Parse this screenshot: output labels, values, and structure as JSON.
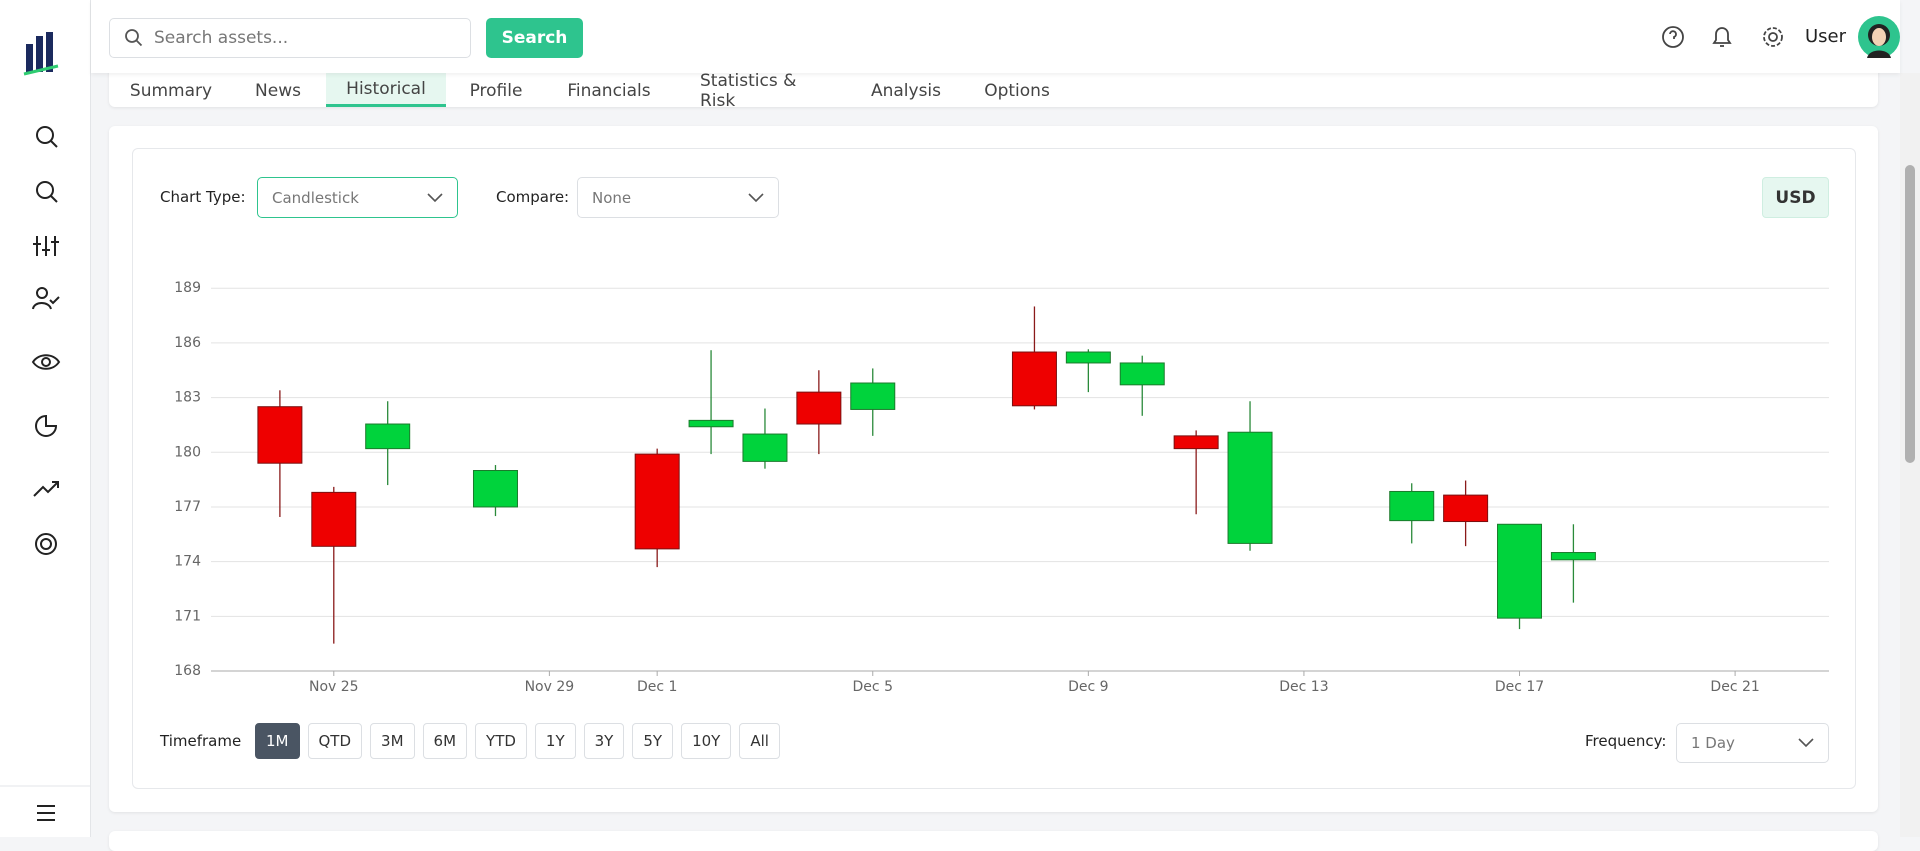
{
  "search": {
    "placeholder": "Search assets...",
    "button": "Search"
  },
  "user": {
    "name": "User"
  },
  "tabs": [
    "Summary",
    "News",
    "Historical",
    "Profile",
    "Financials",
    "Statistics & Risk",
    "Analysis",
    "Options"
  ],
  "controls": {
    "chart_type_label": "Chart Type:",
    "chart_type": "Candlestick",
    "compare_label": "Compare:",
    "compare": "None",
    "currency": "USD",
    "timeframe_label": "Timeframe",
    "timeframes": [
      "1M",
      "QTD",
      "3M",
      "6M",
      "YTD",
      "1Y",
      "3Y",
      "5Y",
      "10Y",
      "All"
    ],
    "frequency_label": "Frequency:",
    "frequency": "1 Day"
  },
  "chart_data": {
    "type": "candlestick",
    "x": [
      "Nov 24",
      "Nov 25",
      "Nov 26",
      "Nov 28",
      "Dec 1",
      "Dec 2",
      "Dec 3",
      "Dec 4",
      "Dec 5",
      "Dec 8",
      "Dec 9",
      "Dec 10",
      "Dec 11",
      "Dec 12",
      "Dec 15",
      "Dec 16",
      "Dec 17",
      "Dec 18"
    ],
    "open": [
      182.5,
      177.8,
      180.2,
      177.0,
      179.9,
      181.4,
      179.5,
      183.3,
      182.35,
      185.5,
      184.9,
      183.7,
      180.9,
      175.0,
      176.25,
      177.65,
      170.9,
      174.1
    ],
    "high": [
      183.4,
      178.1,
      182.8,
      179.3,
      180.2,
      185.6,
      182.4,
      184.5,
      184.6,
      188.0,
      185.65,
      185.3,
      181.2,
      182.8,
      178.3,
      178.45,
      176.05,
      176.05
    ],
    "low": [
      176.45,
      169.5,
      178.2,
      176.5,
      173.7,
      179.9,
      179.1,
      179.9,
      180.9,
      182.35,
      183.3,
      182.0,
      176.6,
      174.6,
      175.0,
      174.85,
      170.3,
      171.75
    ],
    "close": [
      179.4,
      174.84,
      181.55,
      179.0,
      174.7,
      181.75,
      181.0,
      181.55,
      183.8,
      182.55,
      185.5,
      184.9,
      180.2,
      181.1,
      177.85,
      176.2,
      176.05,
      174.5
    ],
    "up_color": "#00d33c",
    "down_color": "#ee0000",
    "ylim": [
      168,
      190
    ],
    "yticks": [
      168,
      171,
      174,
      177,
      180,
      183,
      186,
      189
    ],
    "xlim": [
      "Nov 23",
      "Dec 22"
    ],
    "xticks": [
      "Nov 25",
      "Nov 29",
      "Dec 1",
      "Dec 5",
      "Dec 9",
      "Dec 13",
      "Dec 17",
      "Dec 21"
    ],
    "grid": true
  }
}
